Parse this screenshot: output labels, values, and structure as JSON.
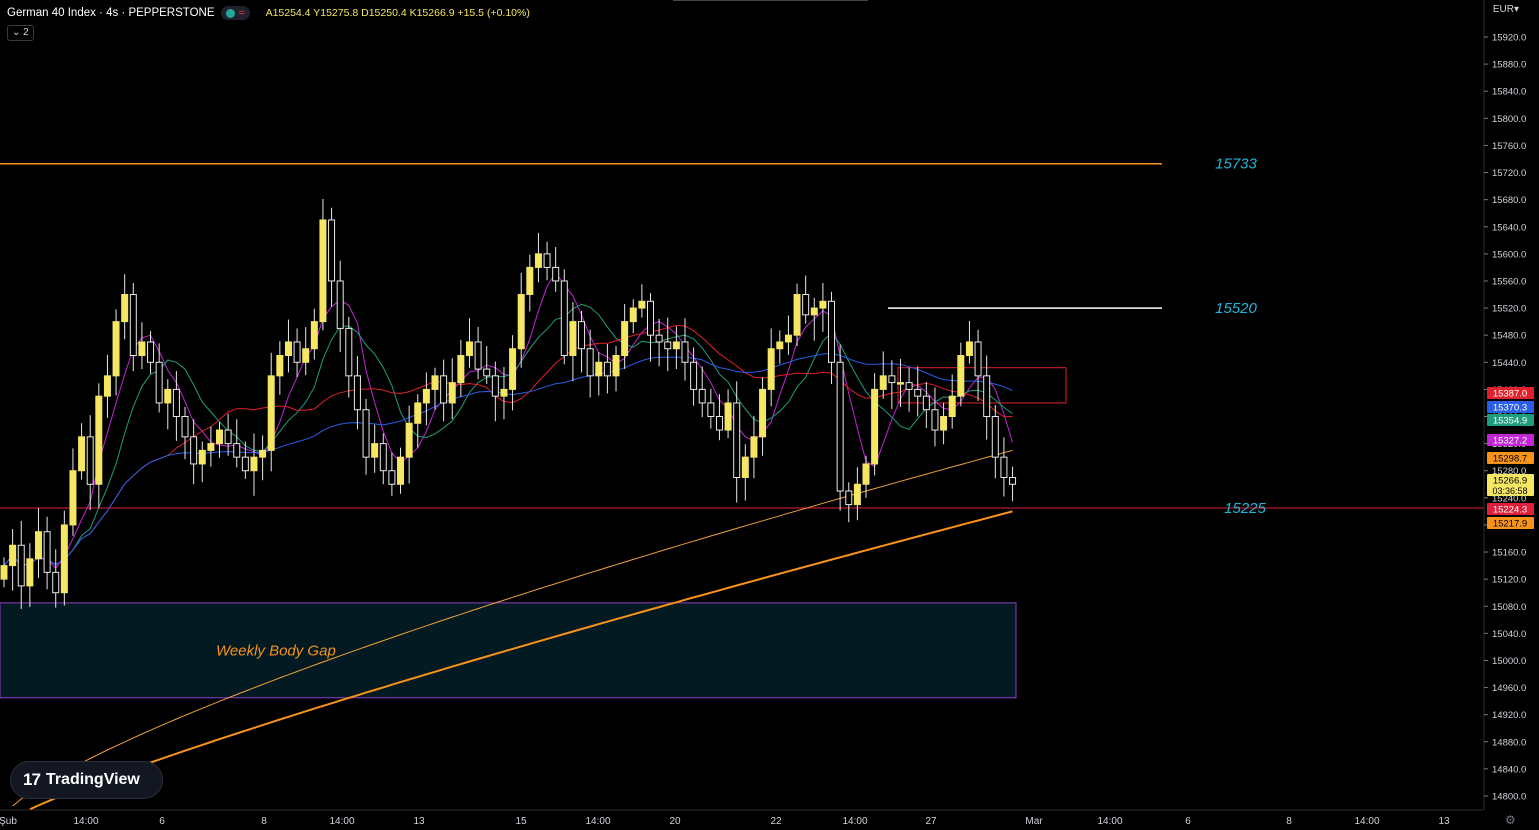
{
  "header": {
    "symbol": "German 40 Index · 4s · PEPPERSTONE",
    "ohlc": "A15254.4  Y15275.8  D15250.4  K15266.9  +15.5 (+0.10%)",
    "collapse_label": "2"
  },
  "currency": "EUR",
  "logo_text": "TradingView",
  "colors": {
    "background": "#000000",
    "candle": "#f5e663",
    "ma_purple": "#c026d3",
    "ma_green": "#1e9e7e",
    "ma_red": "#e0202a",
    "ma_blue": "#2a5ee8",
    "ma_orange_thin": "#f2a13a",
    "ma_orange_thick": "#f7931a",
    "level_orange": "#f7931a",
    "level_red": "#e0203a",
    "level_white": "#ffffff",
    "annotation": "#1fb6d9",
    "gap_border": "#8b3fc7",
    "gap_fill": "#031a22"
  },
  "chart_data": {
    "type": "candlestick",
    "y_ticks": [
      15920,
      15880,
      15840,
      15800,
      15760,
      15720,
      15680,
      15640,
      15600,
      15560,
      15520,
      15480,
      15440,
      15400,
      15360,
      15320,
      15280,
      15240,
      15200,
      15160,
      15120,
      15080,
      15040,
      15000,
      14960,
      14920,
      14880,
      14840,
      14800
    ],
    "y_tick_labels": [
      "15920.0",
      "15880.0",
      "15840.0",
      "15800.0",
      "15760.0",
      "15720.0",
      "15680.0",
      "15640.0",
      "15600.0",
      "15560.0",
      "15520.0",
      "15480.0",
      "15440.0",
      "15400.0",
      "15360.0",
      "15320.0",
      "15280.0",
      "15240.0",
      "15200.0",
      "15160.0",
      "15120.0",
      "15080.0",
      "15040.0",
      "15000.0",
      "14960.0",
      "14920.0",
      "14880.0",
      "14840.0",
      "14800.0"
    ],
    "ylim": [
      14780,
      15940
    ],
    "x_ticks": [
      "Şub",
      "14:00",
      "6",
      "8",
      "14:00",
      "13",
      "15",
      "14:00",
      "20",
      "22",
      "14:00",
      "27",
      "Mar",
      "14:00",
      "6",
      "8",
      "14:00",
      "13"
    ],
    "levels": [
      {
        "value": 15733,
        "label": "15733",
        "color": "#f7931a"
      },
      {
        "value": 15520,
        "label": "15520",
        "color": "#ffffff"
      },
      {
        "value": 15225,
        "label": "15225",
        "color": "#e0203a"
      }
    ],
    "zone": {
      "label": "Weekly Body Gap",
      "from": 14945,
      "to": 15085
    },
    "price_labels": [
      {
        "value": 15387.0,
        "text": "15387.0",
        "color": "#e0202a"
      },
      {
        "value": 15370.3,
        "text": "15370.3",
        "color": "#2a5ee8"
      },
      {
        "value": 15354.9,
        "text": "15354.9",
        "color": "#1e9e7e"
      },
      {
        "value": 15327.2,
        "text": "15327.2",
        "color": "#c026d3"
      },
      {
        "value": 15298.7,
        "text": "15298.7",
        "color": "#f7931a"
      },
      {
        "value": 15266.9,
        "text": "15266.9",
        "time": "03:36:58",
        "color": "#f5e663"
      },
      {
        "value": 15224.3,
        "text": "15224.3",
        "color": "#e0203a"
      },
      {
        "value": 15217.9,
        "text": "15217.9",
        "color": "#f7931a"
      }
    ],
    "closes": [
      15140,
      15170,
      15110,
      15150,
      15190,
      15130,
      15100,
      15200,
      15280,
      15330,
      15260,
      15390,
      15420,
      15500,
      15540,
      15450,
      15470,
      15440,
      15380,
      15400,
      15360,
      15330,
      15290,
      15310,
      15320,
      15340,
      15320,
      15300,
      15280,
      15300,
      15310,
      15420,
      15450,
      15470,
      15440,
      15460,
      15500,
      15650,
      15560,
      15490,
      15420,
      15370,
      15300,
      15320,
      15280,
      15260,
      15300,
      15350,
      15380,
      15400,
      15420,
      15380,
      15410,
      15450,
      15470,
      15430,
      15420,
      15390,
      15400,
      15460,
      15540,
      15580,
      15600,
      15580,
      15560,
      15450,
      15500,
      15460,
      15420,
      15440,
      15420,
      15450,
      15500,
      15520,
      15530,
      15480,
      15470,
      15460,
      15470,
      15440,
      15400,
      15380,
      15360,
      15340,
      15380,
      15270,
      15300,
      15330,
      15400,
      15460,
      15470,
      15480,
      15540,
      15510,
      15520,
      15530,
      15440,
      15250,
      15230,
      15260,
      15290,
      15400,
      15420,
      15410,
      15410,
      15400,
      15390,
      15370,
      15340,
      15360,
      15390,
      15450,
      15470,
      15420,
      15360,
      15300,
      15270,
      15260
    ]
  }
}
